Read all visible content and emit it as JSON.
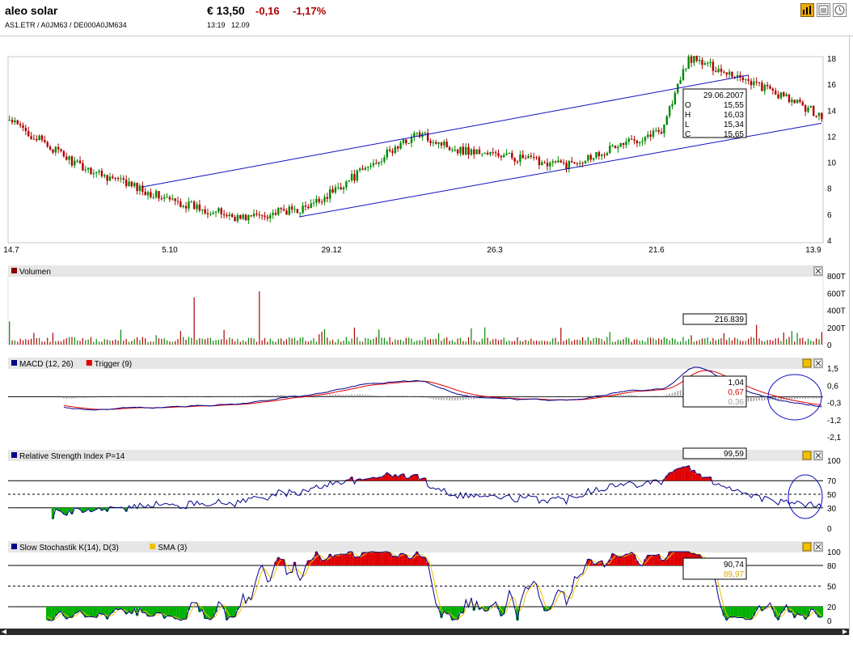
{
  "header": {
    "name": "aleo solar",
    "identifiers": "AS1.ETR  /  A0JM63  /  DE000A0JM634",
    "price": "€ 13,50",
    "change": "-0,16",
    "change_pct": "-1,17%",
    "time": "13:19",
    "date": "12.09",
    "toolbar": [
      {
        "icon": "bar-chart-icon",
        "active": true
      },
      {
        "icon": "news-icon",
        "active": false
      },
      {
        "icon": "clock-icon",
        "active": false
      }
    ]
  },
  "chart_data": [
    {
      "type": "candlestick",
      "panel": "price",
      "ylim": [
        4,
        18
      ],
      "yticks": [
        "4",
        "6",
        "8",
        "10",
        "12",
        "14",
        "16",
        "18"
      ],
      "xticks": [
        "14.7",
        "5.10",
        "29.12",
        "26.3",
        "21.6",
        "13.9"
      ],
      "grid": false,
      "close_approx": [
        {
          "x": "14.7",
          "y": 13.0
        },
        {
          "x": "5.10",
          "y": 7.0
        },
        {
          "x": "29.12",
          "y": 6.5
        },
        {
          "x": "26.3",
          "y": 10.8
        },
        {
          "x": "21.6",
          "y": 13.5
        },
        {
          "x": "13.9",
          "y": 13.5
        }
      ],
      "key_points": [
        {
          "label": "start",
          "y": 13.2
        },
        {
          "label": "dip",
          "y": 9.8
        },
        {
          "label": "october",
          "y": 7.0
        },
        {
          "label": "low",
          "y": 5.7
        },
        {
          "label": "january",
          "y": 6.5
        },
        {
          "label": "spike",
          "y": 12.2
        },
        {
          "label": "march",
          "y": 11.0
        },
        {
          "label": "trough",
          "y": 9.8
        },
        {
          "label": "june",
          "y": 12.5
        },
        {
          "label": "peak",
          "y": 18.0
        },
        {
          "label": "july",
          "y": 16.5
        },
        {
          "label": "end",
          "y": 13.5
        }
      ],
      "trend_lines": [
        {
          "name": "upper",
          "from": {
            "x": "4.9",
            "y": 8.1
          },
          "to": {
            "x": "3.8",
            "y": 16.7
          }
        },
        {
          "name": "lower",
          "from": {
            "x": "29.12",
            "y": 5.8
          },
          "to": {
            "x": "13.9",
            "y": 13.0
          }
        }
      ],
      "tooltip": {
        "date": "29.06.2007",
        "O": "15,55",
        "H": "16,03",
        "L": "15,34",
        "C": "15,65"
      }
    },
    {
      "type": "bar",
      "panel": "volume",
      "title": "Volumen",
      "ylim": [
        0,
        800
      ],
      "yticks": [
        "0",
        "200T",
        "400T",
        "600T",
        "800T"
      ],
      "tooltip_value": "216.839",
      "notable_bars": [
        {
          "label": "start",
          "value": 270
        },
        {
          "label": "october",
          "value": 550
        },
        {
          "label": "november",
          "value": 620
        },
        {
          "label": "december",
          "value": 150
        },
        {
          "label": "march",
          "value": 190
        },
        {
          "label": "june",
          "value": 230
        }
      ]
    },
    {
      "type": "line",
      "panel": "macd",
      "title_parts": [
        "MACD (12, 26)",
        "Trigger (9)"
      ],
      "ylim": [
        -2.1,
        1.5
      ],
      "yticks": [
        "1,5",
        "0,6",
        "-0,3",
        "-1,2",
        "-2,1"
      ],
      "series": [
        {
          "name": "MACD (12, 26)",
          "color": "#00008b"
        },
        {
          "name": "Trigger (9)",
          "color": "#e00000"
        }
      ],
      "values": {
        "macd": "1,04",
        "trigger": "0,67",
        "histogram": "0,36"
      }
    },
    {
      "type": "line",
      "panel": "rsi",
      "title": "Relative Strength Index P=14",
      "ylim": [
        0,
        100
      ],
      "yticks": [
        "0",
        "30",
        "50",
        "70",
        "100"
      ],
      "levels": [
        30,
        50,
        70
      ],
      "value": "99,59"
    },
    {
      "type": "line",
      "panel": "stochastic",
      "title_parts": [
        "Slow Stochastik K(14), D(3)",
        "SMA (3)"
      ],
      "ylim": [
        0,
        100
      ],
      "yticks": [
        "0",
        "20",
        "50",
        "80",
        "100"
      ],
      "levels": [
        20,
        50,
        80
      ],
      "values": {
        "k": "90,74",
        "sma": "89,97"
      }
    }
  ]
}
